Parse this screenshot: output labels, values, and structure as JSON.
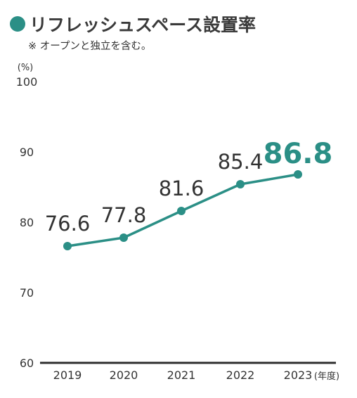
{
  "header": {
    "title": "リフレッシュスペース設置率",
    "note": "※ オープンと独立を含む。"
  },
  "colors": {
    "accent": "#2b8f86",
    "text": "#333333",
    "axis": "#2e2e2e"
  },
  "chart_data": {
    "type": "line",
    "title": "リフレッシュスペース設置率",
    "categories": [
      "2019",
      "2020",
      "2021",
      "2022",
      "2023"
    ],
    "values": [
      76.6,
      77.8,
      81.6,
      85.4,
      86.8
    ],
    "data_labels": [
      "76.6",
      "77.8",
      "81.6",
      "85.4",
      "86.8"
    ],
    "y_unit": "(%)",
    "x_unit": "(年度)",
    "ylim": [
      60,
      100
    ],
    "y_ticks": [
      "60",
      "70",
      "80",
      "90",
      "100"
    ],
    "grid": false,
    "highlight_last": true
  }
}
